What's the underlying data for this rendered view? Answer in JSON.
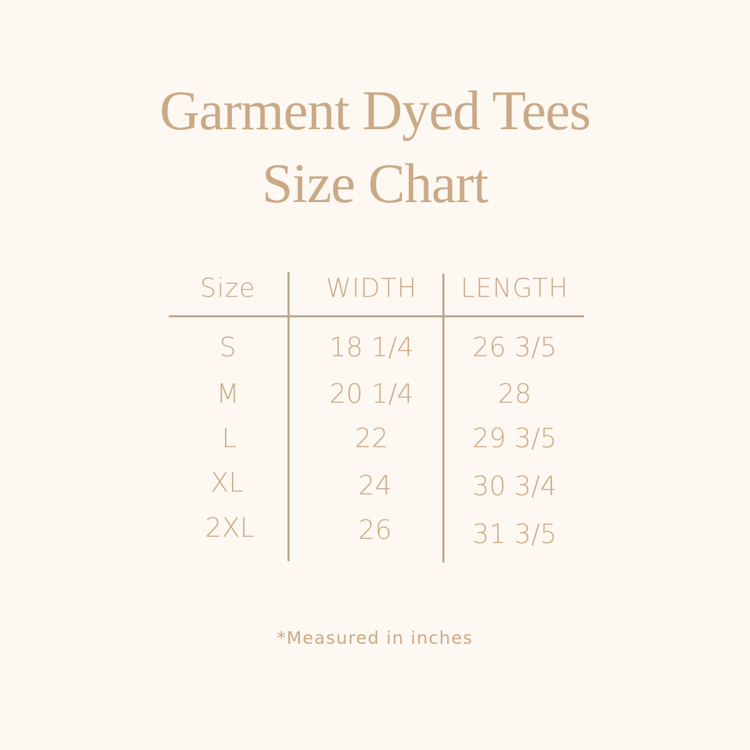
{
  "title": {
    "line1": "Garment Dyed Tees",
    "line2": "Size Chart"
  },
  "table": {
    "headers": [
      "Size",
      "WIDTH",
      "LENGTH"
    ],
    "rows": [
      [
        "S",
        "18 1/4",
        "26 3/5"
      ],
      [
        "M",
        "20 1/4",
        "28"
      ],
      [
        "L",
        "22",
        "29 3/5"
      ],
      [
        "XL",
        "24",
        "30 3/4"
      ],
      [
        "2XL",
        "26",
        "31 3/5"
      ]
    ]
  },
  "footnote": "*Measured in inches",
  "colors": {
    "background": "#fdf8f1",
    "text": "#c9a987",
    "lines": "#bfa58e"
  }
}
